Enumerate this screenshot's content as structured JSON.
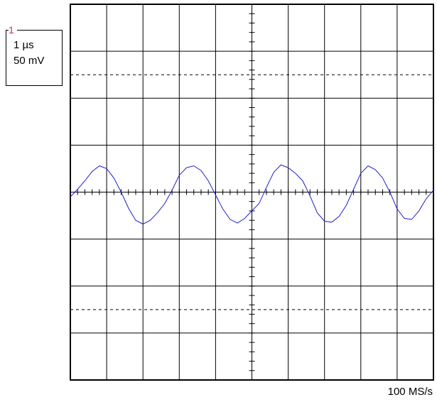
{
  "channel": {
    "number": "1",
    "timebase": "1 µs",
    "volts_per_div": "50 mV"
  },
  "sample_rate": "100 MS/s",
  "colors": {
    "trace": "#2020d0",
    "channel_marker": "#d6246e",
    "grid": "#000000"
  },
  "chart_data": {
    "type": "line",
    "title": "",
    "xlabel": "",
    "ylabel": "",
    "x_divisions": 10,
    "y_divisions": 8,
    "x_unit_per_div": "1 µs",
    "y_unit_per_div": "50 mV",
    "grid": true,
    "xlim": [
      0,
      10
    ],
    "ylim": [
      -200,
      200
    ],
    "series": [
      {
        "name": "",
        "x": [
          0.0,
          0.2,
          0.4,
          0.6,
          0.8,
          1.0,
          1.2,
          1.4,
          1.6,
          1.8,
          2.0,
          2.2,
          2.4,
          2.6,
          2.8,
          3.0,
          3.2,
          3.4,
          3.6,
          3.8,
          4.0,
          4.2,
          4.4,
          4.6,
          4.8,
          5.0,
          5.2,
          5.4,
          5.6,
          5.8,
          6.0,
          6.2,
          6.4,
          6.6,
          6.8,
          7.0,
          7.2,
          7.4,
          7.6,
          7.8,
          8.0,
          8.2,
          8.4,
          8.6,
          8.8,
          9.0,
          9.2,
          9.4,
          9.6,
          9.8,
          10.0
        ],
        "values": [
          -5,
          3,
          12,
          22,
          28,
          25,
          15,
          0,
          -17,
          -30,
          -34,
          -30,
          -22,
          -12,
          2,
          18,
          26,
          28,
          23,
          12,
          -3,
          -18,
          -29,
          -33,
          -28,
          -20,
          -12,
          5,
          21,
          29,
          26,
          20,
          12,
          -4,
          -22,
          -31,
          -32,
          -26,
          -14,
          3,
          20,
          28,
          24,
          15,
          0,
          -18,
          -28,
          -29,
          -20,
          -7,
          2
        ]
      }
    ]
  }
}
